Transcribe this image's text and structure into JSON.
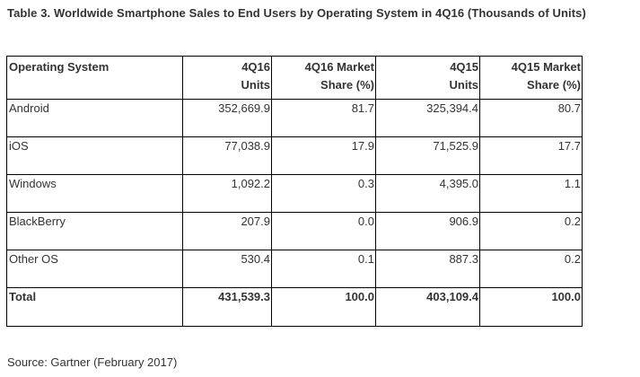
{
  "title": "Table 3. Worldwide Smartphone Sales to End Users by Operating System in 4Q16 (Thousands of Units)",
  "headers": {
    "os": "Operating System",
    "q4_16_units_line1": "4Q16",
    "q4_16_units_line2": "Units",
    "q4_16_share_line1": "4Q16 Market",
    "q4_16_share_line2": "Share (%)",
    "q4_15_units_line1": "4Q15",
    "q4_15_units_line2": "Units",
    "q4_15_share_line1": "4Q15 Market",
    "q4_15_share_line2": "Share (%)"
  },
  "rows": [
    {
      "os": "Android",
      "q4_16_units": "352,669.9",
      "q4_16_share": "81.7",
      "q4_15_units": "325,394.4",
      "q4_15_share": "80.7"
    },
    {
      "os": "iOS",
      "q4_16_units": "77,038.9",
      "q4_16_share": "17.9",
      "q4_15_units": "71,525.9",
      "q4_15_share": "17.7"
    },
    {
      "os": "Windows",
      "q4_16_units": "1,092.2",
      "q4_16_share": "0.3",
      "q4_15_units": "4,395.0",
      "q4_15_share": "1.1"
    },
    {
      "os": "BlackBerry",
      "q4_16_units": "207.9",
      "q4_16_share": "0.0",
      "q4_15_units": "906.9",
      "q4_15_share": "0.2"
    },
    {
      "os": "Other OS",
      "q4_16_units": "530.4",
      "q4_16_share": "0.1",
      "q4_15_units": "887.3",
      "q4_15_share": "0.2"
    }
  ],
  "total": {
    "os": "Total",
    "q4_16_units": "431,539.3",
    "q4_16_share": "100.0",
    "q4_15_units": "403,109.4",
    "q4_15_share": "100.0"
  },
  "source": "Source: Gartner (February 2017)",
  "colors": {
    "text": "#333333",
    "border": "#000000",
    "background": "#ffffff"
  }
}
